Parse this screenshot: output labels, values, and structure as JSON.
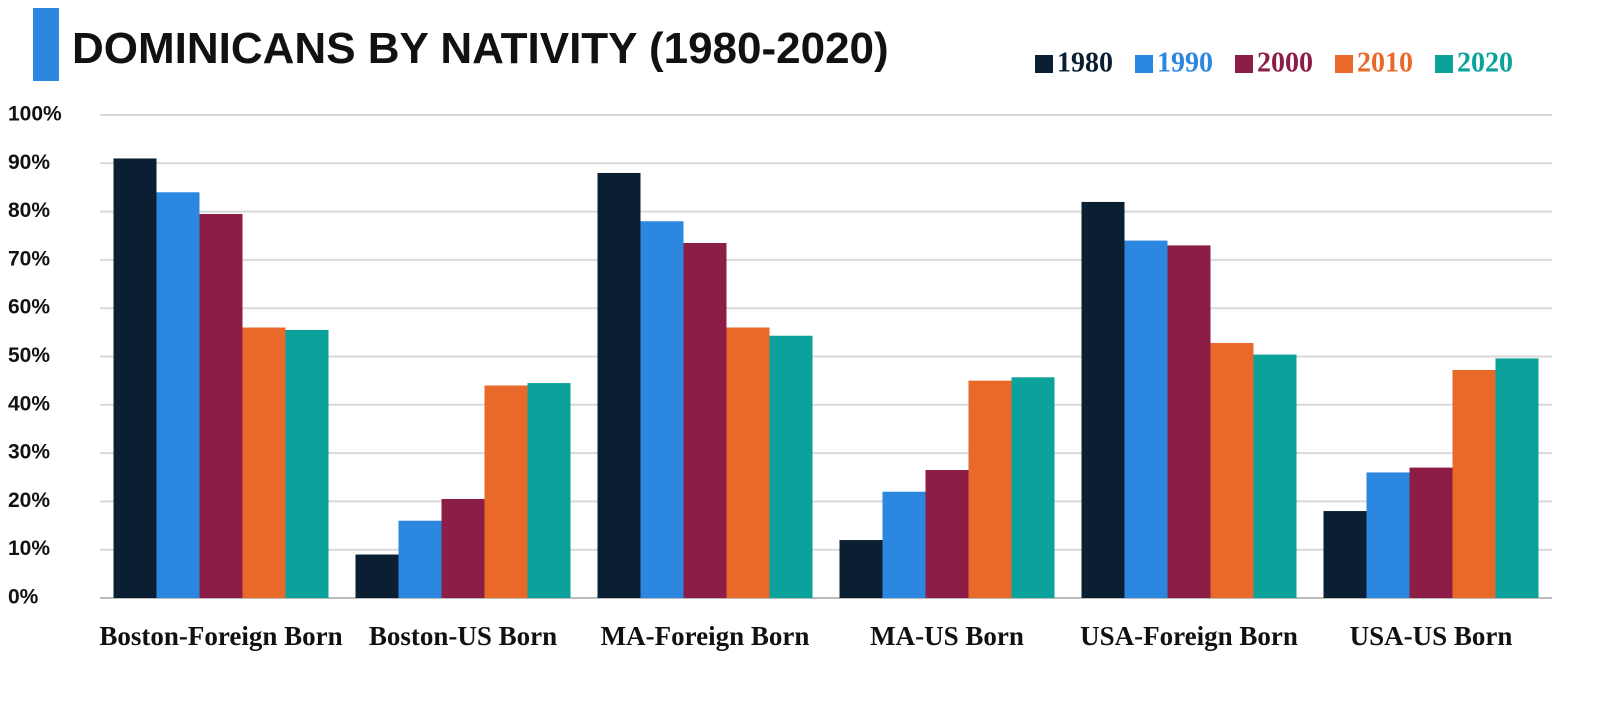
{
  "chart_data": {
    "type": "bar",
    "title": "DOMINICANS BY NATIVITY (1980-2020)",
    "categories": [
      "Boston-Foreign Born",
      "Boston-US Born",
      "MA-Foreign Born",
      "MA-US Born",
      "USA-Foreign Born",
      "USA-US Born"
    ],
    "series": [
      {
        "name": "1980",
        "color": "#0b1f33",
        "values": [
          91,
          9,
          88,
          12,
          82,
          18
        ]
      },
      {
        "name": "1990",
        "color": "#2b87e0",
        "values": [
          84,
          16,
          78,
          22,
          74,
          26
        ]
      },
      {
        "name": "2000",
        "color": "#8b1d47",
        "values": [
          79.5,
          20.5,
          73.5,
          26.5,
          73,
          27
        ]
      },
      {
        "name": "2010",
        "color": "#e8692a",
        "values": [
          56,
          44,
          56,
          45,
          52.8,
          47.2
        ]
      },
      {
        "name": "2020",
        "color": "#0aa29b",
        "values": [
          55.5,
          44.5,
          54.3,
          45.7,
          50.4,
          49.6
        ]
      }
    ],
    "ylim": [
      0,
      100
    ],
    "yticks": [
      {
        "value": 0,
        "label": "0%"
      },
      {
        "value": 10,
        "label": "10%"
      },
      {
        "value": 20,
        "label": "20%"
      },
      {
        "value": 30,
        "label": "30%"
      },
      {
        "value": 40,
        "label": "40%"
      },
      {
        "value": 50,
        "label": "50%"
      },
      {
        "value": 60,
        "label": "60%"
      },
      {
        "value": 70,
        "label": "70%"
      },
      {
        "value": 80,
        "label": "80%"
      },
      {
        "value": 90,
        "label": "90%"
      },
      {
        "value": 100,
        "label": "100%"
      }
    ],
    "grid": true,
    "legend": "top-right"
  }
}
